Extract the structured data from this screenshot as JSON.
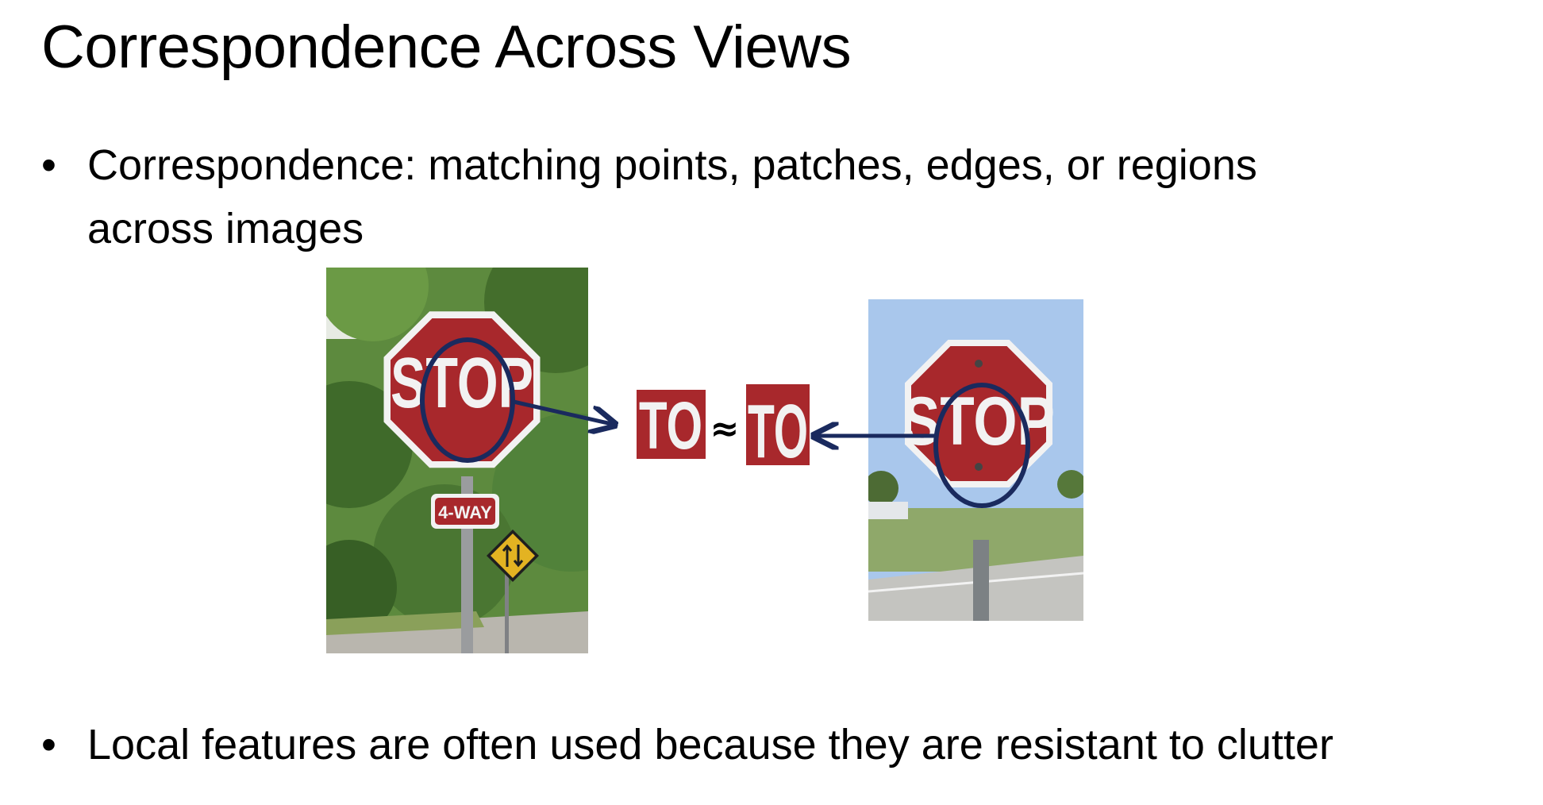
{
  "slide": {
    "title": "Correspondence Across Views",
    "bullets": [
      {
        "line1": "Correspondence: matching points, patches, edges, or regions",
        "line2": "across images"
      },
      {
        "line1": "Local features are often used because they are resistant to clutter"
      }
    ]
  },
  "figure": {
    "left_sign_text": "STOP",
    "left_sub_sign_text": "4-WAY",
    "right_sign_text": "STOP",
    "patch_left_text": "TO",
    "patch_right_text": "TO",
    "approx_symbol": "≈"
  },
  "colors": {
    "sign_red": "#a8282c",
    "arrow_navy": "#1a2a5e",
    "sign_white": "#f2f2f2",
    "foliage": "#4f7a35",
    "sky": "#a9c7ec"
  }
}
